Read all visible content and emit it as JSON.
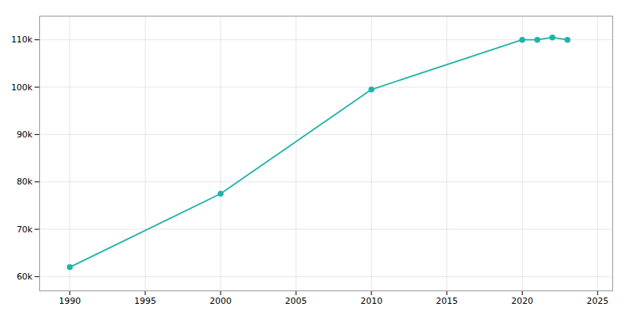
{
  "chart_data": {
    "type": "line",
    "x": [
      1990,
      2000,
      2010,
      2020,
      2021,
      2022,
      2023
    ],
    "values": [
      62000,
      77500,
      99500,
      110000,
      110000,
      110500,
      110000
    ],
    "color": "#20b2aa",
    "marker": "circle",
    "xlim": [
      1988,
      2026
    ],
    "ylim": [
      57000,
      115000
    ],
    "xticks": [
      1990,
      1995,
      2000,
      2005,
      2010,
      2015,
      2020,
      2025
    ],
    "yticks": [
      {
        "value": 60000,
        "label": "60k"
      },
      {
        "value": 70000,
        "label": "70k"
      },
      {
        "value": 80000,
        "label": "80k"
      },
      {
        "value": 90000,
        "label": "90k"
      },
      {
        "value": 100000,
        "label": "100k"
      },
      {
        "value": 110000,
        "label": "110k"
      }
    ],
    "grid": true
  }
}
